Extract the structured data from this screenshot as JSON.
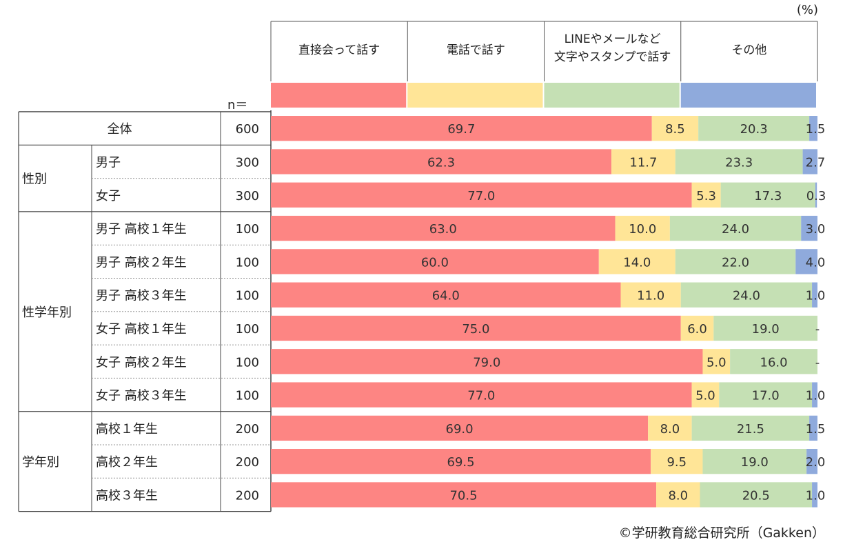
{
  "chart_data": {
    "type": "bar",
    "orientation": "horizontal-stacked-100",
    "unit": "(%)",
    "n_header": "n＝",
    "credit": "©学研教育総合研究所（Gakken）",
    "series": [
      {
        "name": "直接会って話す",
        "color": "#fd8583"
      },
      {
        "name": "電話で話す",
        "color": "#ffe597"
      },
      {
        "name": "LINEやメールなど\n文字やスタンプで話す",
        "color": "#c5e0b4"
      },
      {
        "name": "その他",
        "color": "#8faadc"
      }
    ],
    "groups": [
      {
        "label": "",
        "rows": [
          {
            "label": "全体",
            "n": "600",
            "values": [
              69.7,
              8.5,
              20.3,
              1.5
            ],
            "labels": [
              "69.7",
              "8.5",
              "20.3",
              "1.5"
            ]
          }
        ]
      },
      {
        "label": "性別",
        "rows": [
          {
            "label": "男子",
            "n": "300",
            "values": [
              62.3,
              11.7,
              23.3,
              2.7
            ],
            "labels": [
              "62.3",
              "11.7",
              "23.3",
              "2.7"
            ]
          },
          {
            "label": "女子",
            "n": "300",
            "values": [
              77.0,
              5.3,
              17.3,
              0.3
            ],
            "labels": [
              "77.0",
              "5.3",
              "17.3",
              "0.3"
            ]
          }
        ]
      },
      {
        "label": "性学年別",
        "rows": [
          {
            "label": "男子  高校１年生",
            "n": "100",
            "values": [
              63.0,
              10.0,
              24.0,
              3.0
            ],
            "labels": [
              "63.0",
              "10.0",
              "24.0",
              "3.0"
            ]
          },
          {
            "label": "男子  高校２年生",
            "n": "100",
            "values": [
              60.0,
              14.0,
              22.0,
              4.0
            ],
            "labels": [
              "60.0",
              "14.0",
              "22.0",
              "4.0"
            ]
          },
          {
            "label": "男子  高校３年生",
            "n": "100",
            "values": [
              64.0,
              11.0,
              24.0,
              1.0
            ],
            "labels": [
              "64.0",
              "11.0",
              "24.0",
              "1.0"
            ]
          },
          {
            "label": "女子  高校１年生",
            "n": "100",
            "values": [
              75.0,
              6.0,
              19.0,
              0
            ],
            "labels": [
              "75.0",
              "6.0",
              "19.0",
              "-"
            ]
          },
          {
            "label": "女子  高校２年生",
            "n": "100",
            "values": [
              79.0,
              5.0,
              16.0,
              0
            ],
            "labels": [
              "79.0",
              "5.0",
              "16.0",
              "-"
            ]
          },
          {
            "label": "女子  高校３年生",
            "n": "100",
            "values": [
              77.0,
              5.0,
              17.0,
              1.0
            ],
            "labels": [
              "77.0",
              "5.0",
              "17.0",
              "1.0"
            ]
          }
        ]
      },
      {
        "label": "学年別",
        "rows": [
          {
            "label": "高校１年生",
            "n": "200",
            "values": [
              69.0,
              8.0,
              21.5,
              1.5
            ],
            "labels": [
              "69.0",
              "8.0",
              "21.5",
              "1.5"
            ]
          },
          {
            "label": "高校２年生",
            "n": "200",
            "values": [
              69.5,
              9.5,
              19.0,
              2.0
            ],
            "labels": [
              "69.5",
              "9.5",
              "19.0",
              "2.0"
            ]
          },
          {
            "label": "高校３年生",
            "n": "200",
            "values": [
              70.5,
              8.0,
              20.5,
              1.0
            ],
            "labels": [
              "70.5",
              "8.0",
              "20.5",
              "1.0"
            ]
          }
        ]
      }
    ]
  }
}
